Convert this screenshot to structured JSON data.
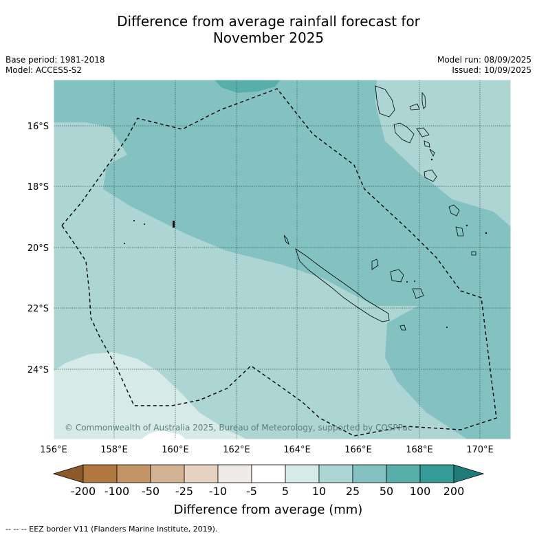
{
  "title_line1": "Difference from average rainfall forecast for",
  "title_line2": "November 2025",
  "base_period": "Base period: 1981-2018",
  "model": "Model: ACCESS-S2",
  "model_run": "Model run: 08/09/2025",
  "issued": "Issued: 10/09/2025",
  "copyright": "© Commonwealth of Australia 2025, Bureau of Meteorology, supported by COSPPac",
  "lat_ticks": [
    "16°S",
    "18°S",
    "20°S",
    "22°S",
    "24°S"
  ],
  "lon_ticks": [
    "156°E",
    "158°E",
    "160°E",
    "162°E",
    "164°E",
    "166°E",
    "168°E",
    "170°E"
  ],
  "colorbar": {
    "label": "Difference from average (mm)",
    "ticks": [
      "-200",
      "-100",
      "-50",
      "-25",
      "-10",
      "-5",
      "5",
      "10",
      "25",
      "50",
      "100",
      "200"
    ],
    "colors": [
      "#8c5a2a",
      "#b07840",
      "#c39466",
      "#d4b294",
      "#e6d2c0",
      "#f0ebe8",
      "#ffffff",
      "#d6eae8",
      "#acd5d4",
      "#84c2c1",
      "#58aeab",
      "#349b97",
      "#1f7c78"
    ]
  },
  "footnote": "--  --  -- EEZ border V11 (Flanders Marine Institute, 2019)."
}
